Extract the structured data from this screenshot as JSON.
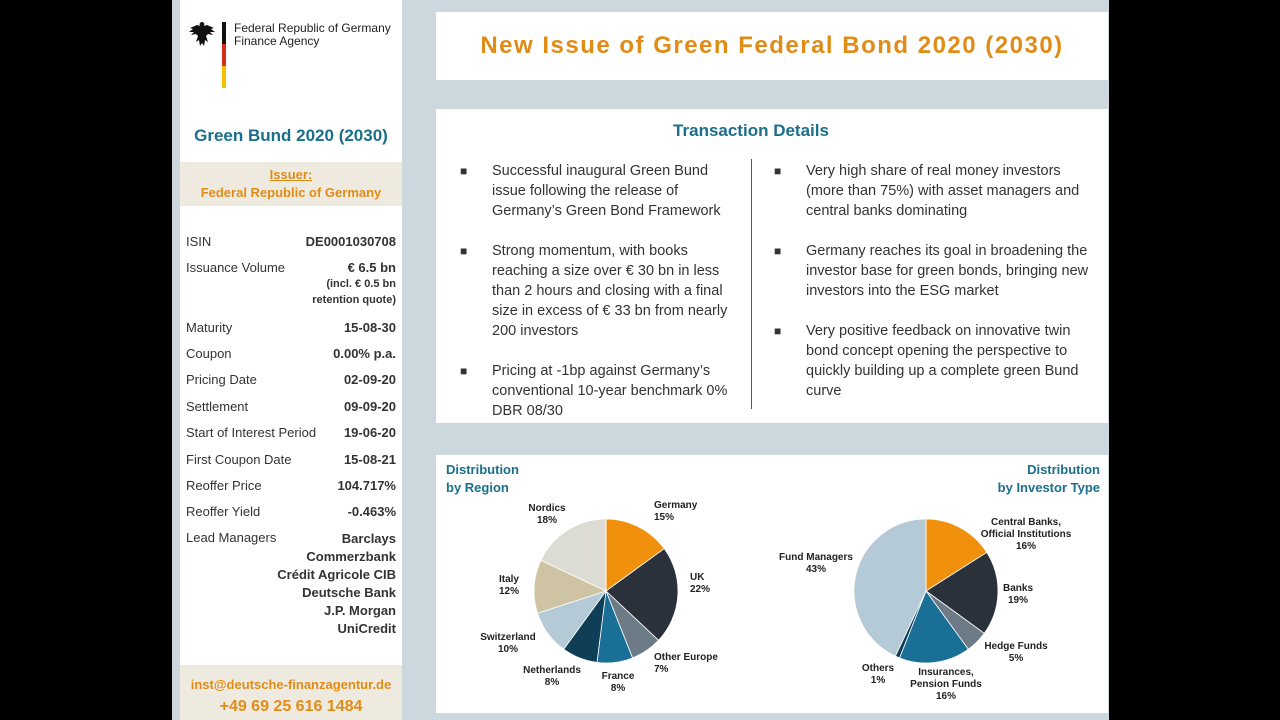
{
  "title": "New Issue of Green Federal Bond 2020 (2030)",
  "agency": {
    "line1": "Federal Republic of Germany",
    "line2": "Finance Agency"
  },
  "bund_title": "Green Bund 2020 (2030)",
  "issuer": {
    "label": "Issuer:",
    "value": "Federal Republic of Germany"
  },
  "terms": [
    {
      "label": "ISIN",
      "value": "DE0001030708"
    },
    {
      "label": "Issuance Volume",
      "value": "€ 6.5 bn"
    },
    {
      "label": "Maturity",
      "value": "15-08-30"
    },
    {
      "label": "Coupon",
      "value": "0.00% p.a."
    },
    {
      "label": "Pricing Date",
      "value": "02-09-20"
    },
    {
      "label": "Settlement",
      "value": "09-09-20"
    },
    {
      "label": "Start of Interest Period",
      "value": "19-06-20"
    },
    {
      "label": "First Coupon Date",
      "value": "15-08-21"
    },
    {
      "label": "Reoffer Price",
      "value": "104.717%"
    },
    {
      "label": "Reoffer Yield",
      "value": "-0.463%"
    },
    {
      "label": "Lead Managers",
      "value": ""
    }
  ],
  "issuance_note": {
    "line1": "(incl. € 0.5 bn",
    "line2": "retention quote)"
  },
  "lead_managers": [
    "Barclays",
    "Commerzbank",
    "Crédit Agricole CIB",
    "Deutsche Bank",
    "J.P. Morgan",
    "UniCredit"
  ],
  "contact": {
    "email": "inst@deutsche-finanzagentur.de",
    "phone": "+49 69 25 616 1484"
  },
  "details": {
    "title": "Transaction Details",
    "bullet_mark": "■",
    "left": [
      "Successful inaugural Green Bund issue following the release of Germany’s Green Bond Framework",
      "Strong momentum, with books reaching a size over € 30 bn in less than 2 hours and closing with a final size in excess of € 33 bn from nearly 200 investors",
      "Pricing at -1bp against Germany’s conventional 10-year benchmark 0% DBR 08/30"
    ],
    "right": [
      "Very high share of real money investors (more than 75%) with asset managers and central banks dominating",
      "Germany reaches its goal in broadening the investor base for green bonds, bringing new investors into the ESG market",
      "Very positive feedback on innovative twin bond concept opening the perspective to quickly building up a complete green Bund curve"
    ]
  },
  "chart_data": [
    {
      "type": "pie",
      "title": "Distribution by Region",
      "title_lines": [
        "Distribution",
        "by Region"
      ],
      "categories": [
        "Germany",
        "UK",
        "Other Europe",
        "France",
        "Netherlands",
        "Switzerland",
        "Italy",
        "Nordics"
      ],
      "values": [
        15,
        22,
        7,
        8,
        8,
        10,
        12,
        18
      ],
      "value_labels": [
        "15%",
        "22%",
        "7%",
        "8%",
        "8%",
        "10%",
        "12%",
        "18%"
      ],
      "colors": [
        "#f0900c",
        "#2b313a",
        "#6d7b86",
        "#1a6f96",
        "#0f3e57",
        "#b4cad6",
        "#cec3a2",
        "#dcdbd4"
      ]
    },
    {
      "type": "pie",
      "title": "Distribution by Investor Type",
      "title_lines": [
        "Distribution",
        "by Investor Type"
      ],
      "categories": [
        "Central Banks, Official Institutions",
        "Banks",
        "Hedge Funds",
        "Insurances, Pension Funds",
        "Others",
        "Fund Managers"
      ],
      "label_lines": [
        [
          "Central Banks,",
          "Official Institutions"
        ],
        [
          "Banks"
        ],
        [
          "Hedge Funds"
        ],
        [
          "Insurances,",
          "Pension Funds"
        ],
        [
          "Others"
        ],
        [
          "Fund Managers"
        ]
      ],
      "values": [
        16,
        19,
        5,
        16,
        1,
        43
      ],
      "value_labels": [
        "16%",
        "19%",
        "5%",
        "16%",
        "1%",
        "43%"
      ],
      "colors": [
        "#f0900c",
        "#2b313a",
        "#6d7b86",
        "#1a6f96",
        "#0f3e57",
        "#b4cad6"
      ]
    }
  ]
}
